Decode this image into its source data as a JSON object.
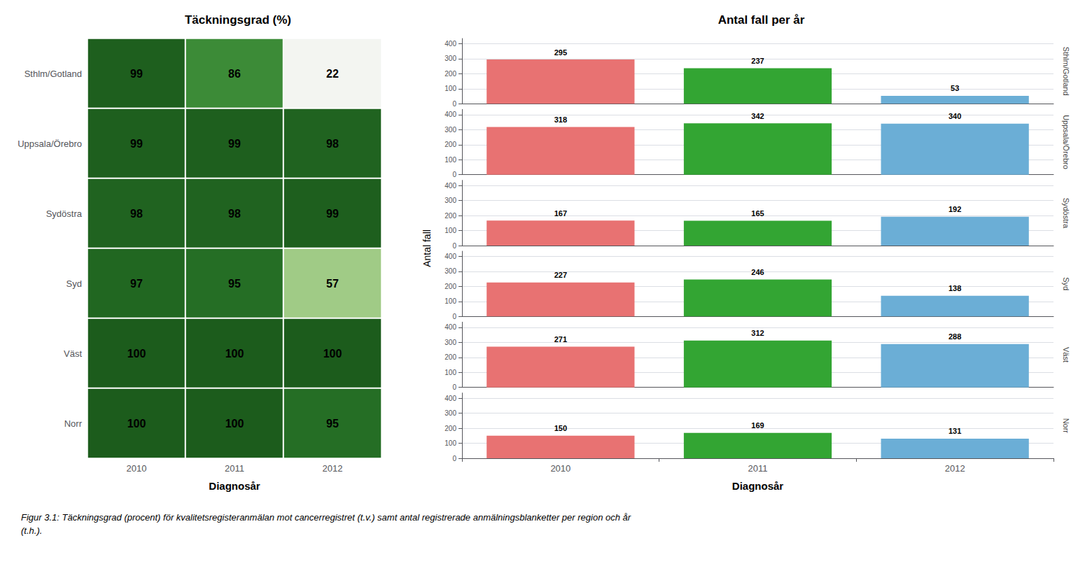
{
  "chart_data": [
    {
      "type": "heatmap",
      "title": "Täckningsgrad (%)",
      "x_categories": [
        "2010",
        "2011",
        "2012"
      ],
      "y_categories": [
        "Sthlm/Gotland",
        "Uppsala/Örebro",
        "Sydöstra",
        "Syd",
        "Väst",
        "Norr"
      ],
      "values": [
        [
          99,
          86,
          22
        ],
        [
          99,
          99,
          98
        ],
        [
          98,
          98,
          99
        ],
        [
          97,
          95,
          57
        ],
        [
          100,
          100,
          100
        ],
        [
          100,
          100,
          95
        ]
      ],
      "xlabel": "Diagnosår",
      "data_labels": true,
      "caption": "Figur 3.1: Täckningsgrad (procent) för kvalitetsregisteranmälan mot cancerregistret (t.v.) samt antal registrerade anmälningsblanketter per region och år\n(t.h.)."
    },
    {
      "type": "bar",
      "title": "Antal fall per år",
      "xlabel": "Diagnosår",
      "ylabel": "Antal fall",
      "categories": [
        "2010",
        "2011",
        "2012"
      ],
      "colors": [
        "#e87272",
        "#33a533",
        "#6baed6"
      ],
      "facets": [
        {
          "name": "Sthlm/Gotland",
          "values": [
            295,
            237,
            53
          ]
        },
        {
          "name": "Uppsala/Örebro",
          "values": [
            318,
            342,
            340
          ]
        },
        {
          "name": "Sydöstra",
          "values": [
            167,
            165,
            192
          ]
        },
        {
          "name": "Syd",
          "values": [
            227,
            246,
            138
          ]
        },
        {
          "name": "Väst",
          "values": [
            271,
            312,
            288
          ]
        },
        {
          "name": "Norr",
          "values": [
            150,
            169,
            131
          ]
        }
      ],
      "ylim": [
        0,
        435
      ],
      "yticks": [
        0,
        100,
        200,
        300,
        400
      ],
      "grid": true,
      "data_labels": true
    }
  ]
}
